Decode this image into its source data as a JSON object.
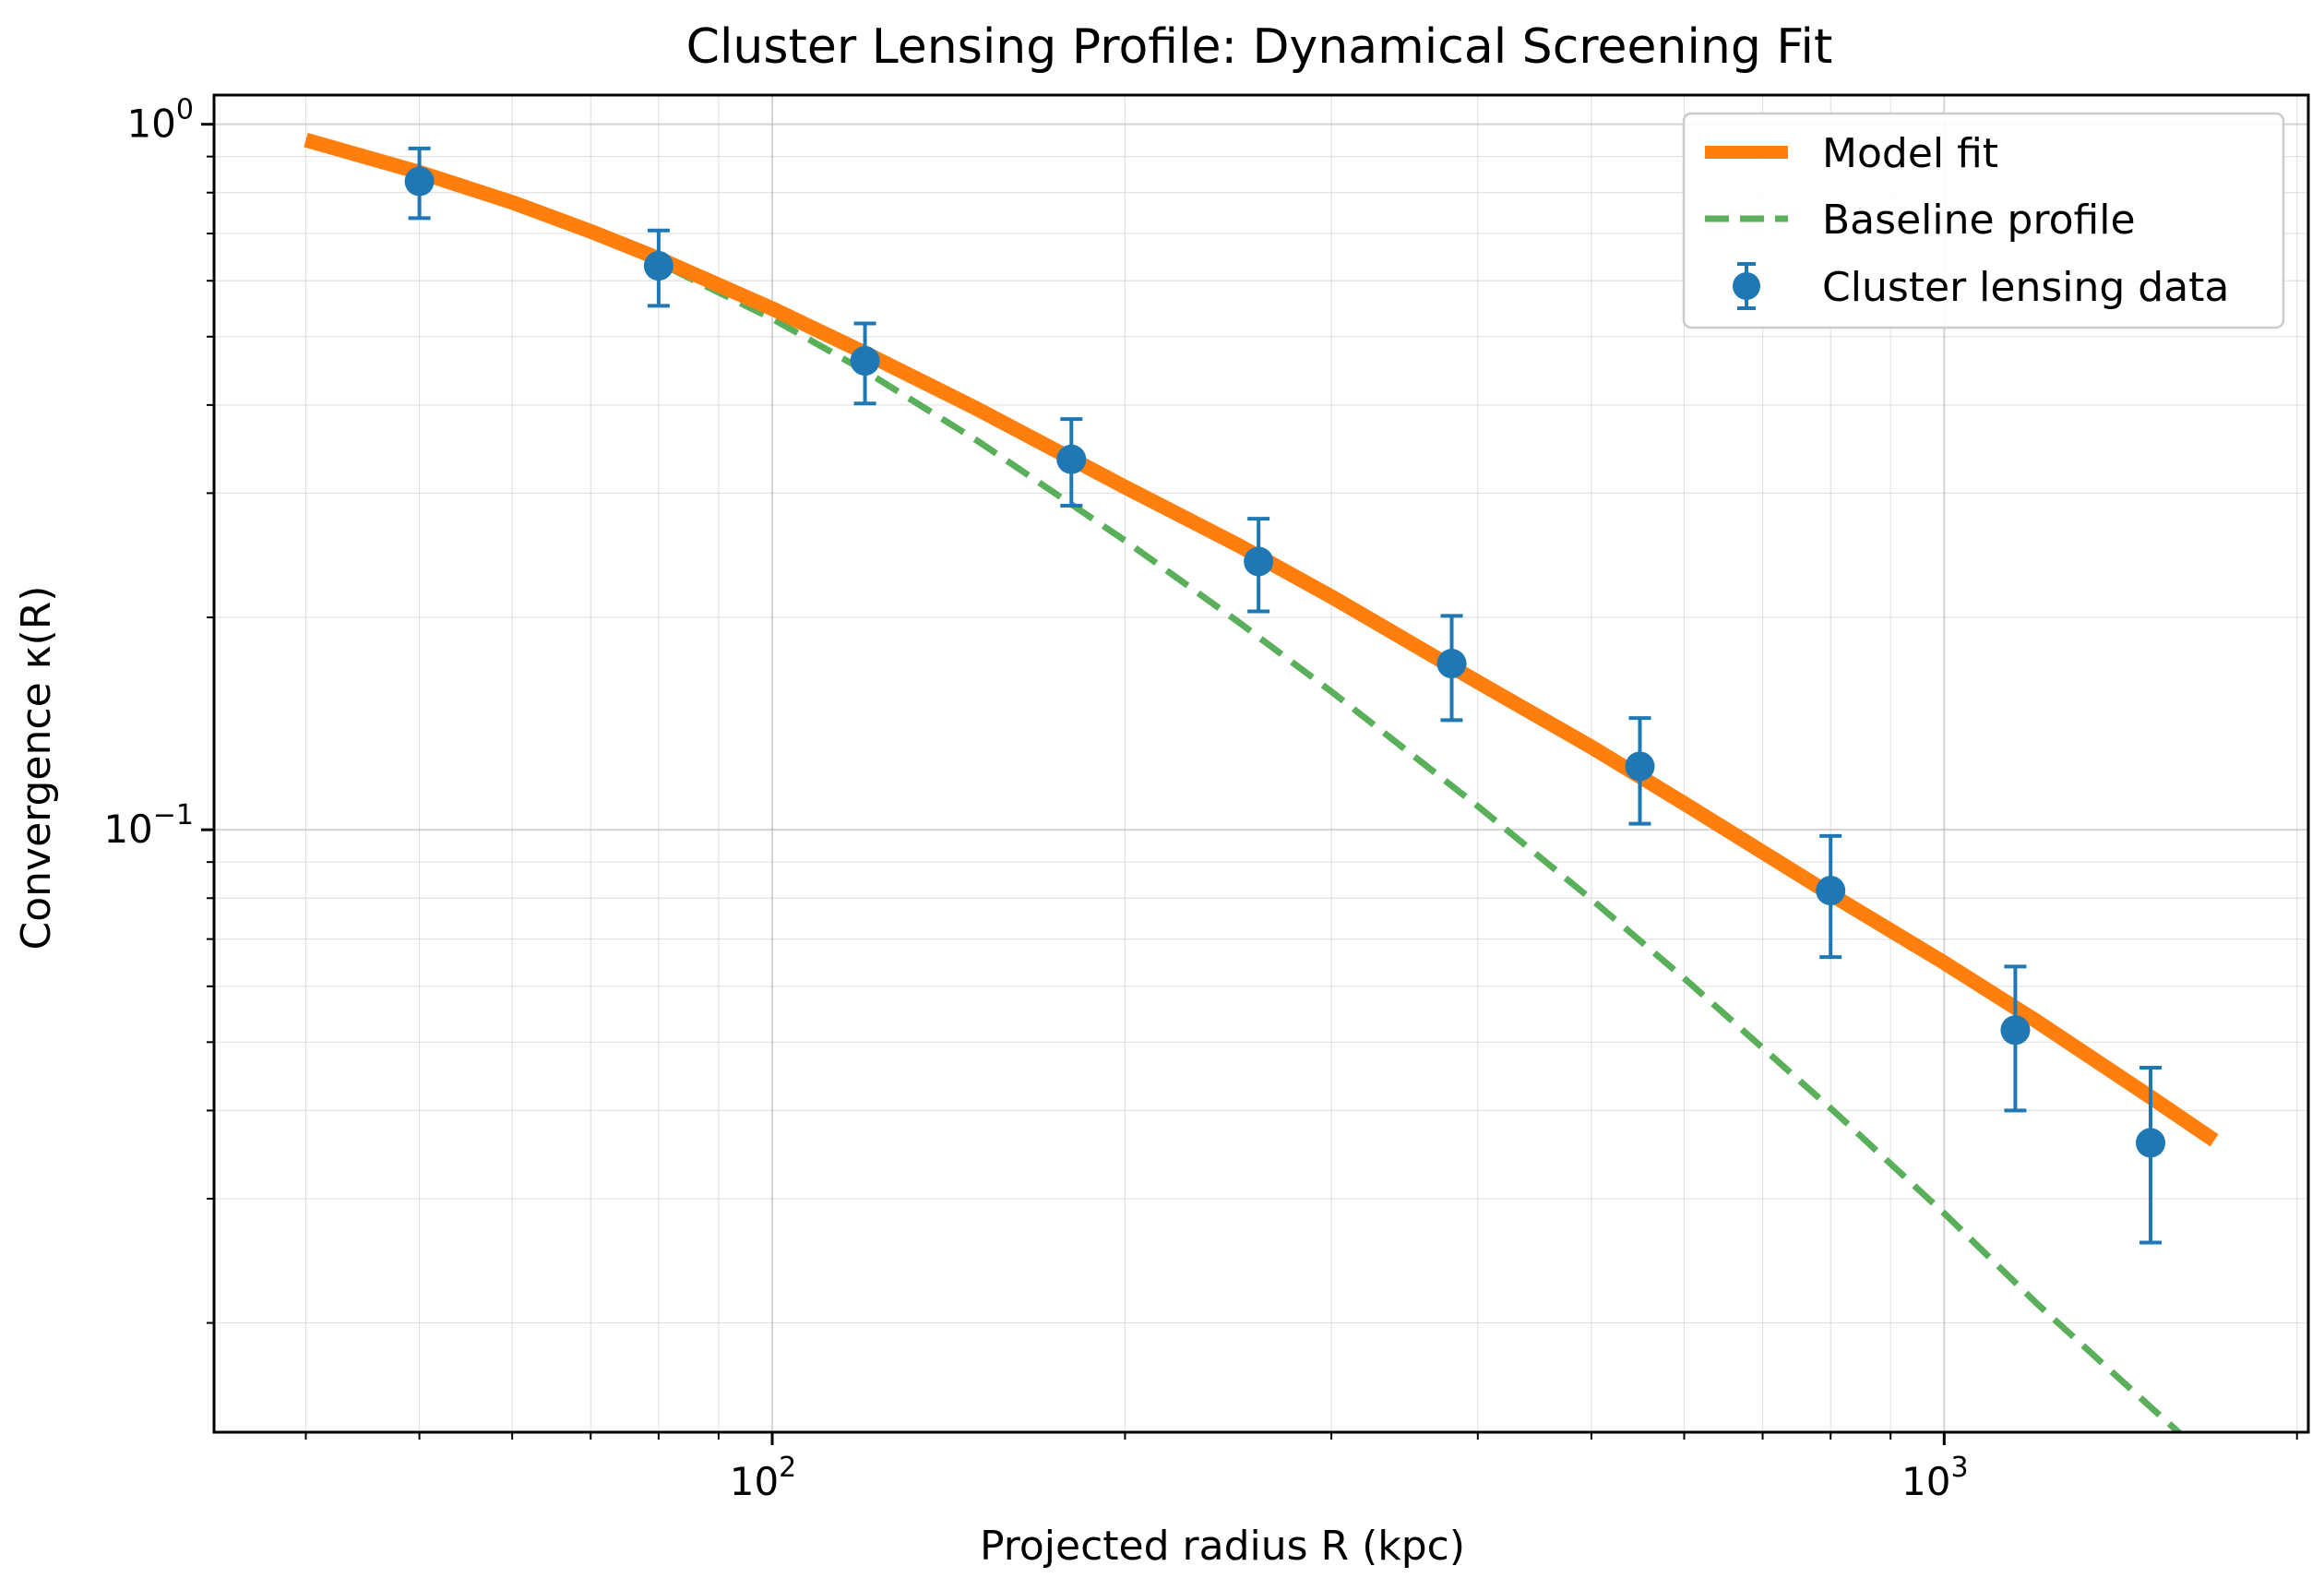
{
  "chart_data": {
    "type": "line",
    "title": "Cluster Lensing Profile: Dynamical Screening Fit",
    "xlabel": "Projected radius R (kpc)",
    "ylabel": "Convergence κ(R)",
    "xscale": "log",
    "yscale": "log",
    "xlim": [
      33.4,
      2045
    ],
    "ylim": [
      0.014,
      1.1
    ],
    "grid": true,
    "legend_position": "top-right",
    "x_ticks": [
      {
        "value": 100,
        "base": "10",
        "exp": "2"
      },
      {
        "value": 1000,
        "base": "10",
        "exp": "3"
      }
    ],
    "y_ticks": [
      {
        "value": 1.0,
        "base": "10",
        "exp": "0"
      },
      {
        "value": 0.1,
        "base": "10",
        "exp": "−1"
      }
    ],
    "series": [
      {
        "name": "Model fit",
        "kind": "line",
        "color": "#ff7f0e",
        "x": [
          40,
          50,
          60,
          70,
          80,
          100,
          120,
          150,
          200,
          250,
          300,
          400,
          500,
          600,
          800,
          1000,
          1200,
          1500,
          1700
        ],
        "y": [
          0.95,
          0.855,
          0.775,
          0.705,
          0.645,
          0.548,
          0.474,
          0.394,
          0.306,
          0.253,
          0.214,
          0.162,
          0.131,
          0.109,
          0.081,
          0.0648,
          0.0535,
          0.0418,
          0.0363
        ]
      },
      {
        "name": "Baseline profile",
        "kind": "dashed-line",
        "color": "#5aaf5a",
        "x": [
          40,
          50,
          60,
          70,
          80,
          100,
          120,
          150,
          200,
          250,
          300,
          400,
          500,
          600,
          800,
          1000,
          1200,
          1500,
          1700
        ],
        "y": [
          0.95,
          0.852,
          0.77,
          0.698,
          0.636,
          0.53,
          0.447,
          0.355,
          0.257,
          0.197,
          0.157,
          0.108,
          0.0797,
          0.0616,
          0.0403,
          0.0286,
          0.0213,
          0.0152,
          0.0126
        ]
      },
      {
        "name": "Cluster lensing data",
        "kind": "errorbar",
        "color": "#1f77b4",
        "x": [
          50,
          80,
          120,
          180,
          260,
          380,
          550,
          800,
          1150,
          1500
        ],
        "y": [
          0.83,
          0.63,
          0.462,
          0.335,
          0.24,
          0.172,
          0.123,
          0.082,
          0.052,
          0.036
        ],
        "yerr": [
          0.094,
          0.077,
          0.06,
          0.047,
          0.036,
          0.029,
          0.021,
          0.016,
          0.012,
          0.01
        ]
      }
    ]
  }
}
